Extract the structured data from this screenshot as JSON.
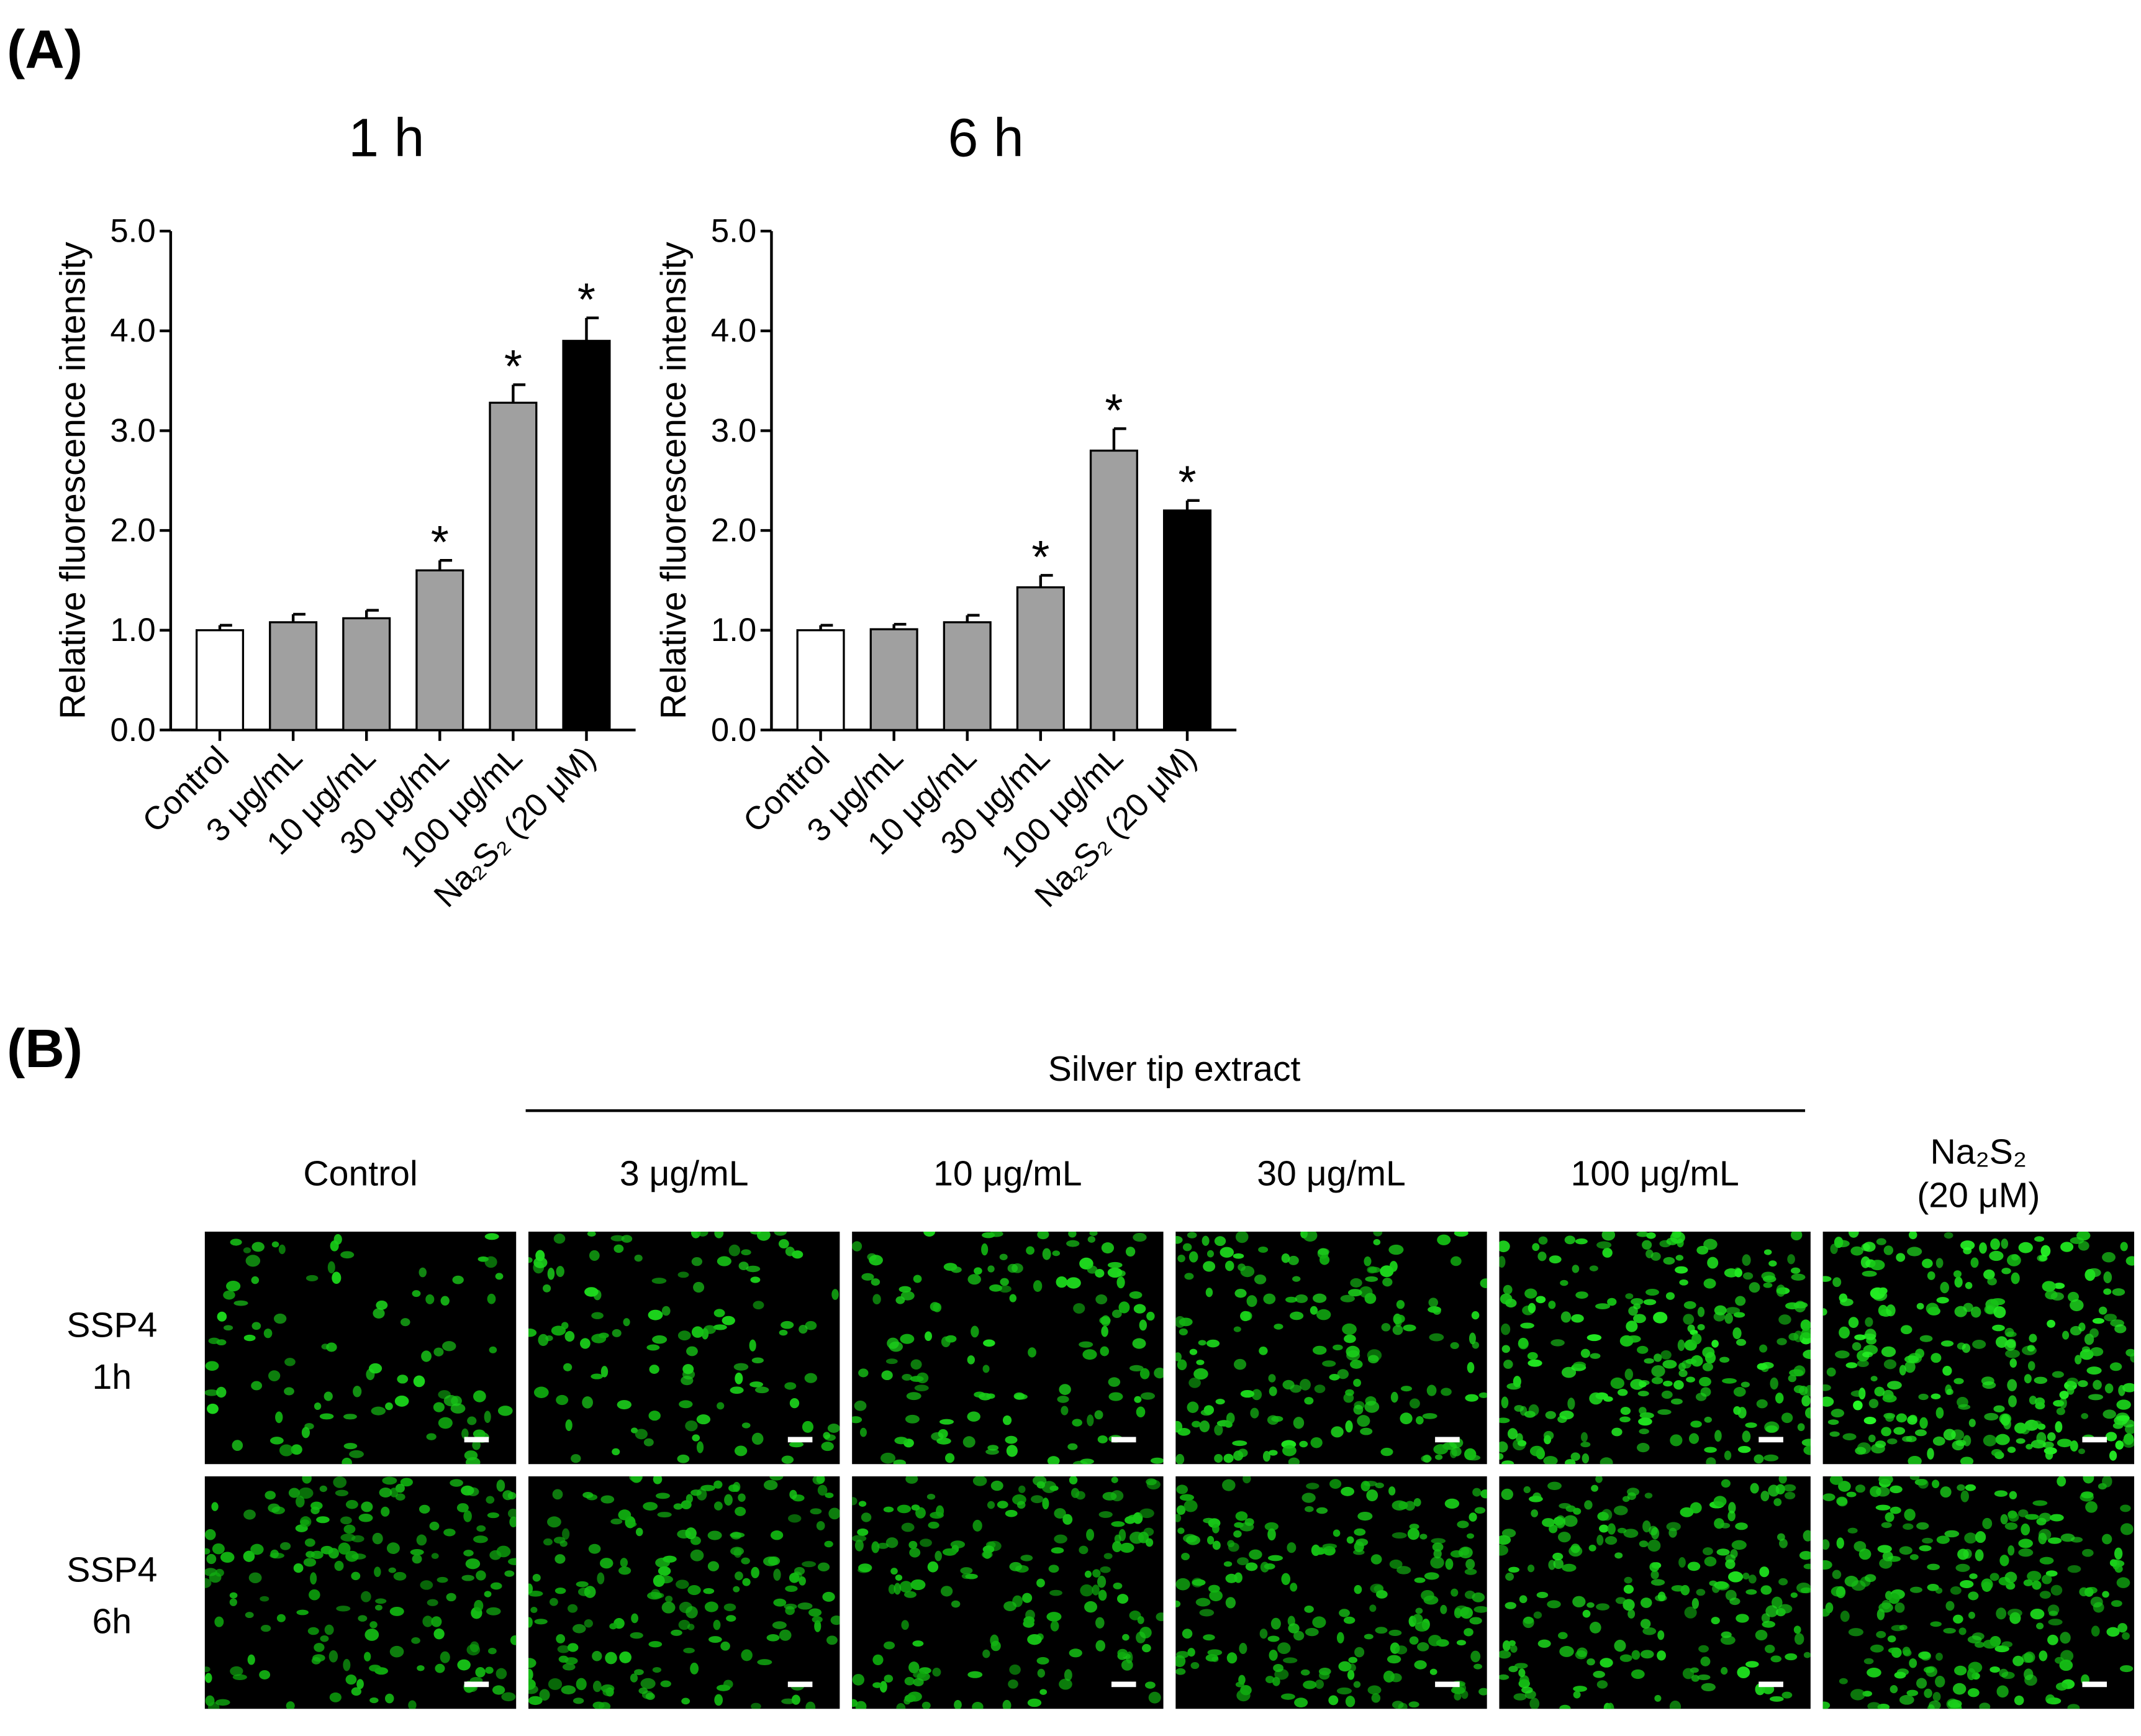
{
  "panel_labels": [
    "(A)",
    "(B)"
  ],
  "chart_data": [
    {
      "type": "bar",
      "title": "1 h",
      "y_label": "Relative fluorescence intensity",
      "categories": [
        "Control",
        "3 μg/mL",
        "10 μg/mL",
        "30 μg/mL",
        "100 μg/mL",
        "Na₂S₂ (20 μM)"
      ],
      "values": [
        1.0,
        1.08,
        1.12,
        1.6,
        3.28,
        3.9
      ],
      "errors": [
        0.05,
        0.08,
        0.08,
        0.1,
        0.18,
        0.23
      ],
      "colors": [
        "#ffffff",
        "#a0a0a0",
        "#a0a0a0",
        "#a0a0a0",
        "#a0a0a0",
        "#000000"
      ],
      "significance": [
        null,
        null,
        null,
        "*",
        "*",
        "*"
      ],
      "ylim": [
        0,
        5
      ],
      "yticks": [
        {
          "value": 0,
          "label": "0.0"
        },
        {
          "value": 1,
          "label": "1.0"
        },
        {
          "value": 2,
          "label": "2.0"
        },
        {
          "value": 3,
          "label": "3.0"
        },
        {
          "value": 4,
          "label": "4.0"
        },
        {
          "value": 5,
          "label": "5.0"
        }
      ]
    },
    {
      "type": "bar",
      "title": "6 h",
      "y_label": "Relative fluorescence intensity",
      "categories": [
        "Control",
        "3 μg/mL",
        "10 μg/mL",
        "30 μg/mL",
        "100 μg/mL",
        "Na₂S₂ (20 μM)"
      ],
      "values": [
        1.0,
        1.01,
        1.08,
        1.43,
        2.8,
        2.2
      ],
      "errors": [
        0.05,
        0.05,
        0.07,
        0.12,
        0.22,
        0.1
      ],
      "colors": [
        "#ffffff",
        "#a0a0a0",
        "#a0a0a0",
        "#a0a0a0",
        "#a0a0a0",
        "#000000"
      ],
      "significance": [
        null,
        null,
        null,
        "*",
        "*",
        "*"
      ],
      "ylim": [
        0,
        5
      ],
      "yticks": [
        {
          "value": 0,
          "label": "0.0"
        },
        {
          "value": 1,
          "label": "1.0"
        },
        {
          "value": 2,
          "label": "2.0"
        },
        {
          "value": 3,
          "label": "3.0"
        },
        {
          "value": 4,
          "label": "4.0"
        },
        {
          "value": 5,
          "label": "5.0"
        }
      ]
    }
  ],
  "panel_b": {
    "group_label": "Silver tip extract",
    "columns": [
      [
        "Control"
      ],
      [
        "3 μg/mL"
      ],
      [
        "10 μg/mL"
      ],
      [
        "30 μg/mL"
      ],
      [
        "100 μg/mL"
      ],
      [
        "Na₂S₂",
        "(20 μM)"
      ]
    ],
    "rows": [
      [
        "SSP4",
        "1h"
      ],
      [
        "SSP4",
        "6h"
      ]
    ]
  }
}
